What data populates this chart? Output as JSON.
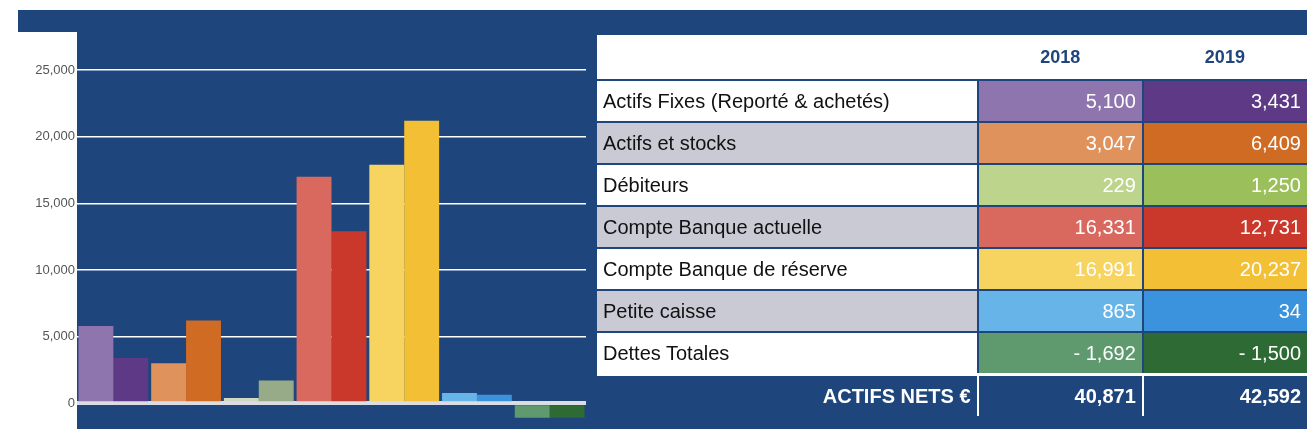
{
  "chart_data": [
    {
      "type": "bar",
      "categories": [
        null,
        null,
        null,
        null,
        null,
        null,
        null
      ],
      "series": [
        {
          "colors": [
            "#8e75ad",
            "#e0925c",
            "#d2d9c2",
            "#d9685f",
            "#f7d35f",
            "#67b5e8",
            "#5f9a6e"
          ],
          "values": [
            5800,
            3000,
            400,
            17000,
            17900,
            760,
            -1100
          ]
        },
        {
          "colors": [
            "#5e3a86",
            "#d06b24",
            "#97ab88",
            "#c9382a",
            "#f2bf35",
            "#3a93dc",
            "#2e6b34"
          ],
          "values": [
            3400,
            6200,
            1700,
            12900,
            21200,
            640,
            -1100
          ]
        }
      ],
      "ylim": [
        -1200,
        25000
      ],
      "yticks": [
        0,
        {
          "value": 5000,
          "label": "5,000"
        },
        {
          "value": 10000,
          "label": "10,000"
        },
        {
          "value": 15000,
          "label": "15,000"
        },
        {
          "value": 20000,
          "label": "20,000"
        },
        {
          "value": 25000,
          "label": "25,000"
        }
      ],
      "grid": "y",
      "tick_labels": "y"
    },
    {
      "type": "other",
      "annotations": [
        "2018",
        "2019",
        "Actifs Fixes (Reporté & achetés)",
        "5,100",
        "3,431",
        "Actifs et stocks",
        "3,047",
        "6,409",
        "Débiteurs",
        "229",
        "1,250",
        "Compte Banque actuelle",
        "16,331",
        "12,731",
        "Compte Banque de réserve",
        "16,991",
        "20,237",
        "Petite caisse",
        "865",
        "34",
        "Dettes Totales",
        "- 1,692",
        "- 1,500",
        "ACTIFS NETS €",
        "40,871",
        "42,592"
      ],
      "colors": [
        "#8e75ad",
        "#5e3a86",
        "#e0925c",
        "#d06b24",
        "#bcd48c",
        "#9bbf5a",
        "#d9685f",
        "#c9382a",
        "#f7d35f",
        "#f2bf35",
        "#67b5e8",
        "#3a93dc",
        "#5f9a6e",
        "#2e6b34"
      ]
    }
  ]
}
